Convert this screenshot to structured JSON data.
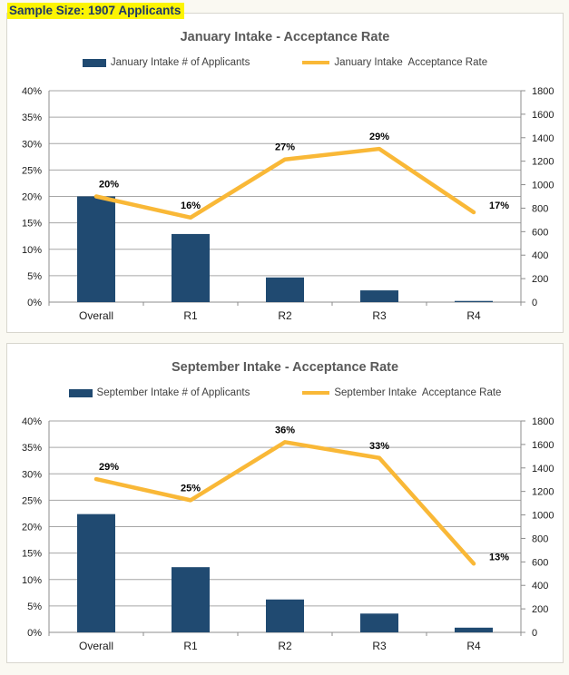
{
  "header": {
    "sample_size_label": "Sample Size: 1907 Applicants",
    "highlight_color": "#fcf403",
    "text_color": "#1f3864"
  },
  "colors": {
    "bar": "#204a71",
    "line": "#f9b837",
    "title": "#595959",
    "grid": "#a6a6a6",
    "axis_line": "#8c8c8c",
    "axis_text": "#1a1a1a",
    "data_label": "#000000",
    "panel_bg": "#ffffff",
    "page_bg": "#faf9f2"
  },
  "chart_data": [
    {
      "type": "bar",
      "subtype": "combo-bar-line",
      "title": "January Intake - Acceptance Rate",
      "categories": [
        "Overall",
        "R1",
        "R2",
        "R3",
        "R4"
      ],
      "series": [
        {
          "name": "January Intake # of Applicants",
          "type": "bar",
          "axis": "right",
          "values": [
            900,
            580,
            210,
            100,
            10
          ]
        },
        {
          "name": "January Intake  Acceptance Rate",
          "type": "line",
          "axis": "left",
          "values": [
            20,
            16,
            27,
            29,
            17
          ],
          "point_labels": [
            "20%",
            "16%",
            "27%",
            "29%",
            "17%"
          ]
        }
      ],
      "left_axis": {
        "min": 0,
        "max": 40,
        "step": 5,
        "ticks": [
          "0%",
          "5%",
          "10%",
          "15%",
          "20%",
          "25%",
          "30%",
          "35%",
          "40%"
        ]
      },
      "right_axis": {
        "min": 0,
        "max": 1800,
        "step": 200,
        "ticks": [
          "0",
          "200",
          "400",
          "600",
          "800",
          "1000",
          "1200",
          "1400",
          "1600",
          "1800"
        ]
      },
      "grid": true,
      "legend_position": "top"
    },
    {
      "type": "bar",
      "subtype": "combo-bar-line",
      "title": "September Intake - Acceptance Rate",
      "categories": [
        "Overall",
        "R1",
        "R2",
        "R3",
        "R4"
      ],
      "series": [
        {
          "name": "September Intake # of Applicants",
          "type": "bar",
          "axis": "right",
          "values": [
            1007,
            555,
            280,
            160,
            40
          ]
        },
        {
          "name": "September Intake  Acceptance Rate",
          "type": "line",
          "axis": "left",
          "values": [
            29,
            25,
            36,
            33,
            13
          ],
          "point_labels": [
            "29%",
            "25%",
            "36%",
            "33%",
            "13%"
          ]
        }
      ],
      "left_axis": {
        "min": 0,
        "max": 40,
        "step": 5,
        "ticks": [
          "0%",
          "5%",
          "10%",
          "15%",
          "20%",
          "25%",
          "30%",
          "35%",
          "40%"
        ]
      },
      "right_axis": {
        "min": 0,
        "max": 1800,
        "step": 200,
        "ticks": [
          "0",
          "200",
          "400",
          "600",
          "800",
          "1000",
          "1200",
          "1400",
          "1600",
          "1800"
        ]
      },
      "grid": true,
      "legend_position": "top"
    }
  ]
}
